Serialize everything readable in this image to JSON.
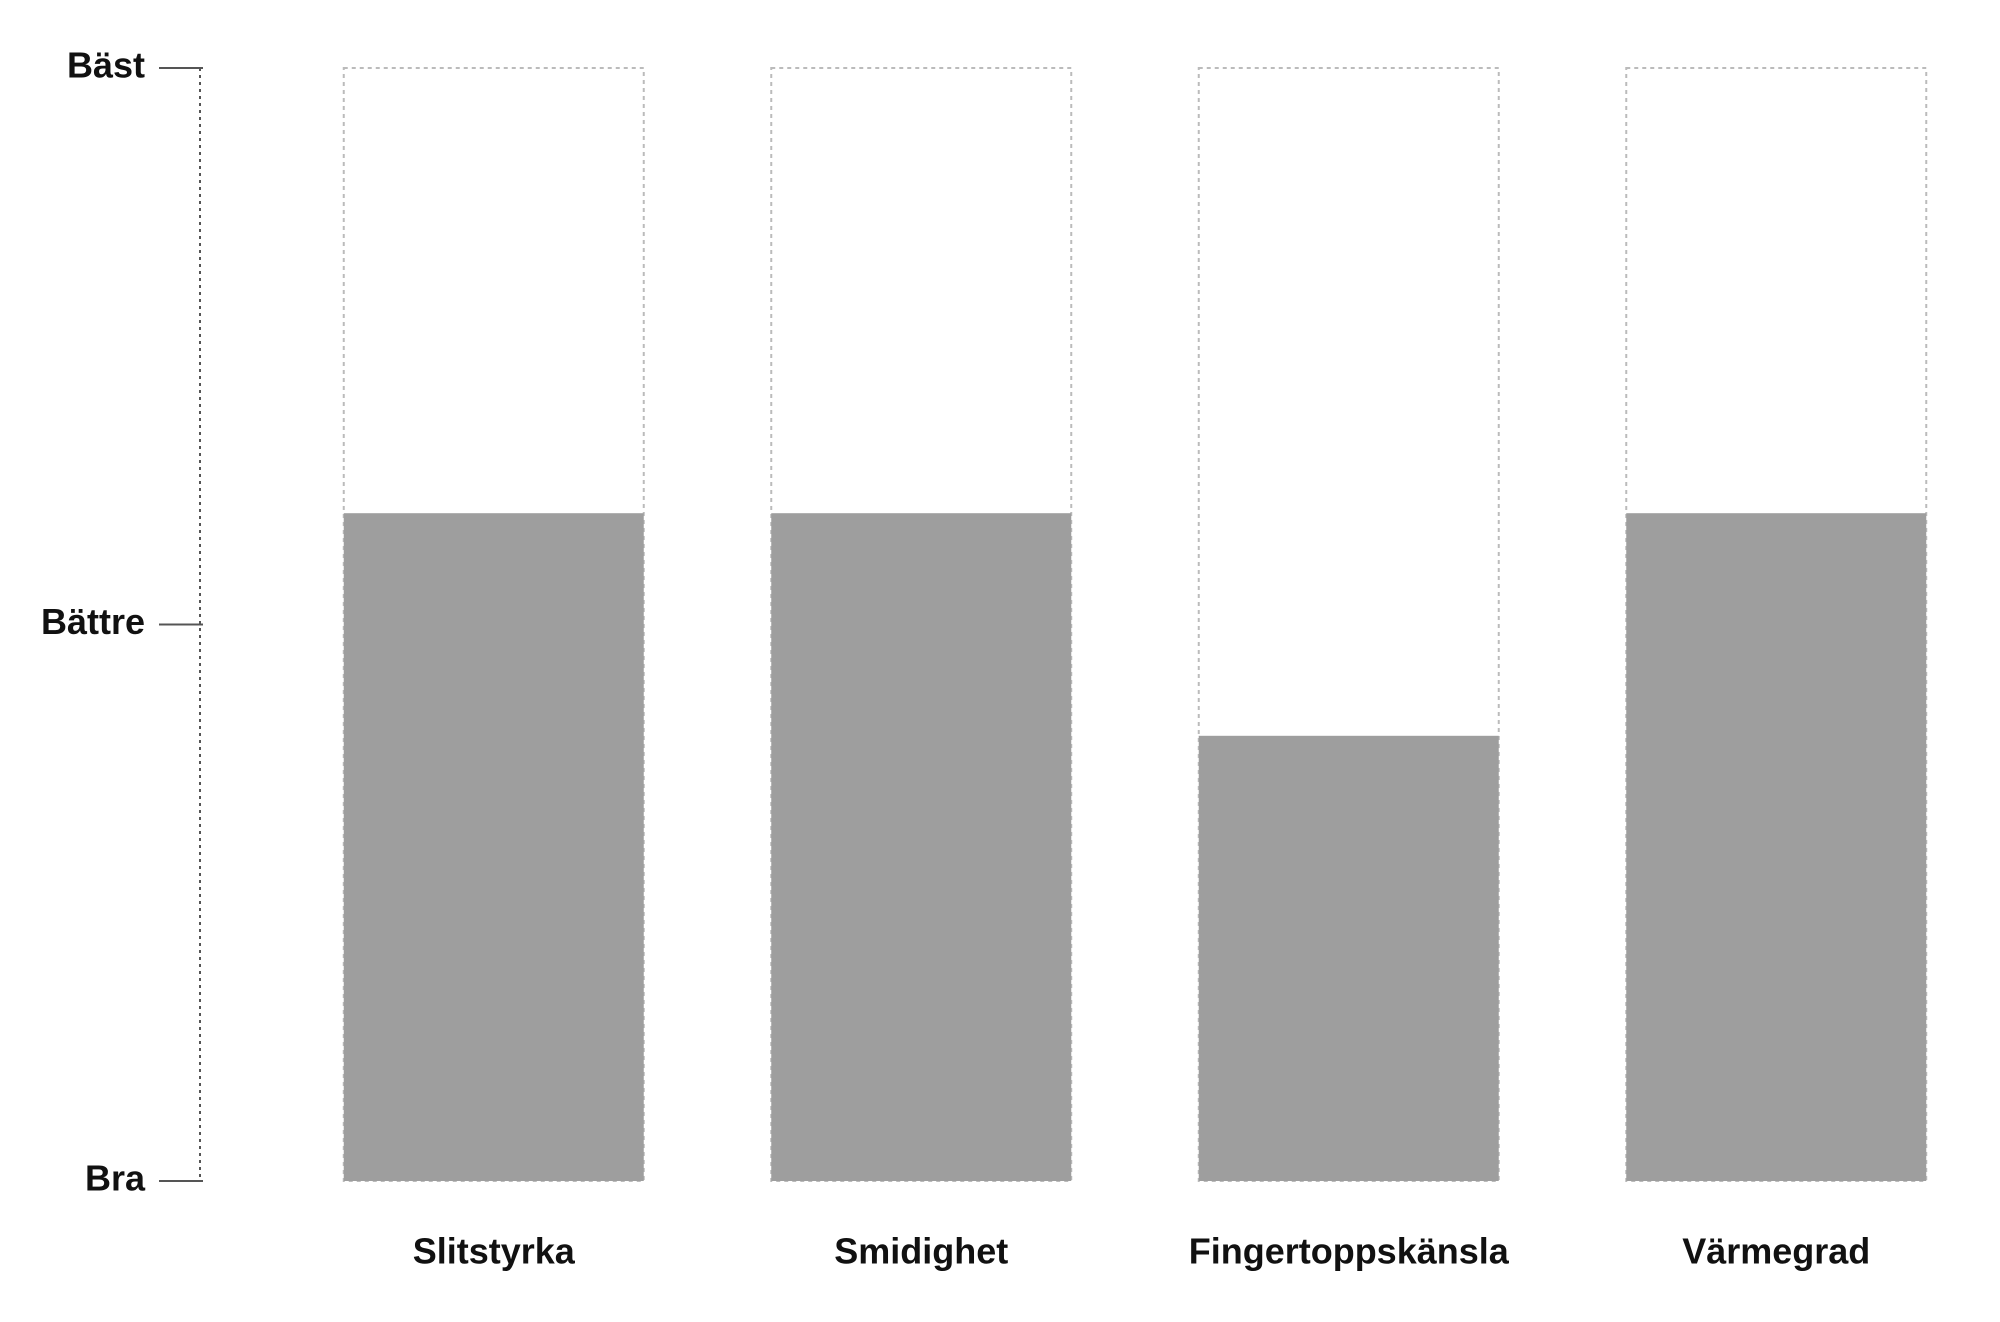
{
  "chart_data": {
    "type": "bar",
    "categories": [
      "Slitstyrka",
      "Smidighet",
      "Fingertoppskänsla",
      "Värmegrad"
    ],
    "values": [
      1.2,
      1.2,
      0.8,
      1.2
    ],
    "color": "#9e9e9e",
    "ylim": [
      0,
      2
    ],
    "yticks": [
      {
        "value": 0,
        "label": "Bra"
      },
      {
        "value": 1,
        "label": "Bättre"
      },
      {
        "value": 2,
        "label": "Bäst"
      }
    ]
  }
}
